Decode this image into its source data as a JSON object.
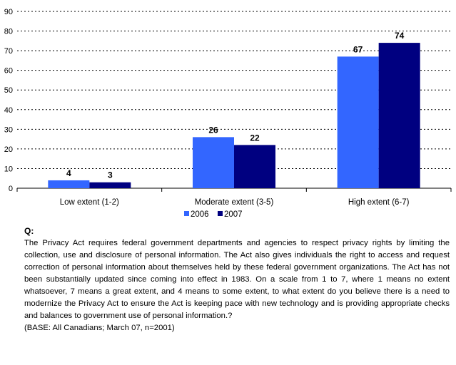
{
  "chart_data": {
    "type": "bar",
    "categories": [
      "Low extent (1-2)",
      "Moderate extent (3-5)",
      "High extent (6-7)"
    ],
    "series": [
      {
        "name": "2006",
        "values": [
          4,
          26,
          67
        ],
        "color": "#3366FF"
      },
      {
        "name": "2007",
        "values": [
          3,
          22,
          74
        ],
        "color": "#000080"
      }
    ],
    "yticks": [
      0,
      10,
      20,
      30,
      40,
      50,
      60,
      70,
      80,
      90
    ],
    "ylim": [
      0,
      90
    ],
    "grid": true,
    "legend": "bottom"
  },
  "question": {
    "label": "Q:",
    "text": "The Privacy Act requires federal government departments and agencies to respect privacy rights by limiting the collection, use and disclosure of personal information. The Act also gives individuals the right to access and request correction of personal information about themselves held by these federal government organizations. The Act has not been substantially updated since coming into effect in 1983. On a scale from 1 to 7, where 1 means no extent whatsoever, 7 means a great extent, and 4 means to some extent, to what extent do you believe there is a need to modernize the Privacy Act to ensure the Act is keeping pace with new technology and is providing appropriate checks and balances to government use of personal information.?",
    "base": "(BASE:  All Canadians; March 07, n=2001)"
  }
}
